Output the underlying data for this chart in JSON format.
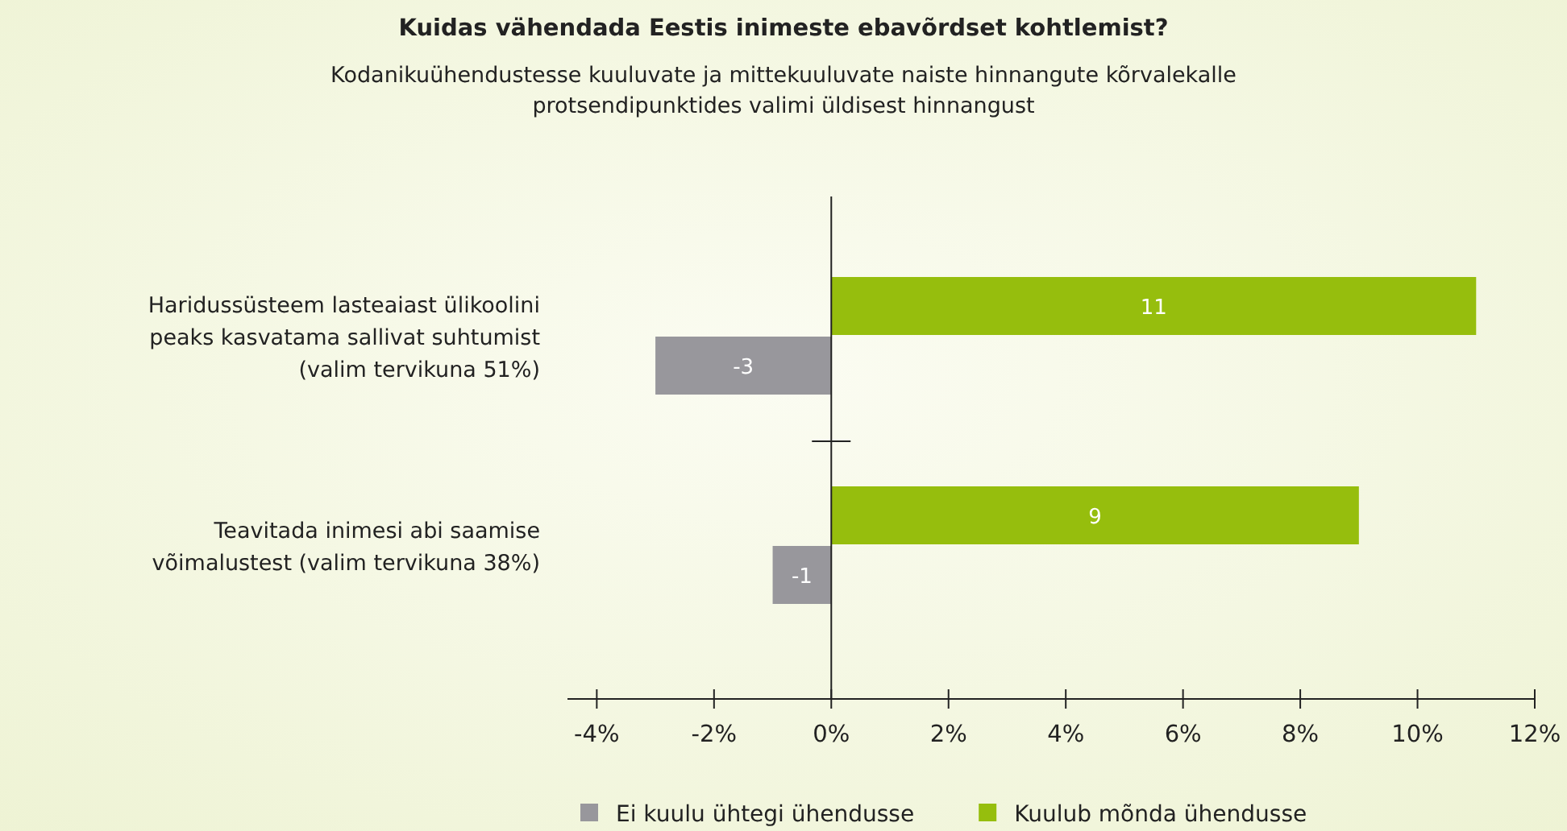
{
  "chart_data": {
    "type": "bar",
    "orientation": "horizontal",
    "title": "Kuidas vähendada Eestis inimeste ebavõrdset kohtlemist?",
    "subtitle": "Kodanikuühendustesse kuuluvate ja mittekuuluvate naiste hinnangute kõrvalekalle protsendipunktides valimi üldisest hinnangust",
    "categories": [
      "Haridussüsteem lasteaiast ülikoolini peaks kasvatama sallivat suhtumist (valim tervikuna 51%)",
      "Teavitada inimesi abi saamise võimalustest (valim tervikuna 38%)"
    ],
    "series": [
      {
        "name": "Ei kuulu ühtegi ühendusse",
        "color": "#98979c",
        "values": [
          -3,
          -1
        ]
      },
      {
        "name": "Kuulub mõnda ühendusse",
        "color": "#96be0d",
        "values": [
          11,
          9
        ]
      }
    ],
    "xlim": [
      -4.5,
      12
    ],
    "xticks": [
      {
        "value": -4,
        "label": "-4%"
      },
      {
        "value": -2,
        "label": "-2%"
      },
      {
        "value": 0,
        "label": "0%"
      },
      {
        "value": 2,
        "label": "2%"
      },
      {
        "value": 4,
        "label": "4%"
      },
      {
        "value": 6,
        "label": "6%"
      },
      {
        "value": 8,
        "label": "8%"
      },
      {
        "value": 10,
        "label": "10%"
      },
      {
        "value": 12,
        "label": "12%"
      }
    ],
    "data_labels": true,
    "legend": "bottom"
  }
}
